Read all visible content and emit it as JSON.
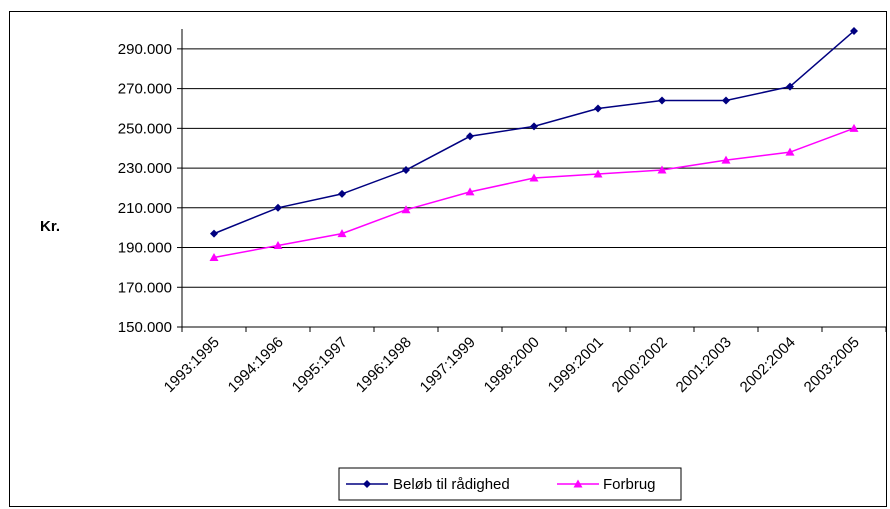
{
  "chart_data": {
    "type": "line",
    "title": "",
    "xlabel": "",
    "ylabel": "Kr.",
    "ylim": [
      150000,
      300000
    ],
    "ytick_values": [
      150000,
      170000,
      190000,
      210000,
      230000,
      250000,
      270000,
      290000
    ],
    "ytick_labels": [
      "150.000",
      "170.000",
      "190.000",
      "210.000",
      "230.000",
      "250.000",
      "270.000",
      "290.000"
    ],
    "categories": [
      "1993:1995",
      "1994:1996",
      "1995:1997",
      "1996:1998",
      "1997:1999",
      "1998:2000",
      "1999:2001",
      "2000:2002",
      "2001:2003",
      "2002:2004",
      "2003:2005"
    ],
    "series": [
      {
        "name": "Beløb til rådighed",
        "color": "#000080",
        "marker": "diamond",
        "values": [
          197000,
          210000,
          217000,
          229000,
          246000,
          251000,
          260000,
          264000,
          264000,
          271000,
          299000
        ]
      },
      {
        "name": "Forbrug",
        "color": "#ff00ff",
        "marker": "triangle",
        "values": [
          185000,
          191000,
          197000,
          209000,
          218000,
          225000,
          227000,
          229000,
          234000,
          238000,
          250000
        ]
      }
    ],
    "grid": "horizontal",
    "legend_position": "bottom"
  }
}
